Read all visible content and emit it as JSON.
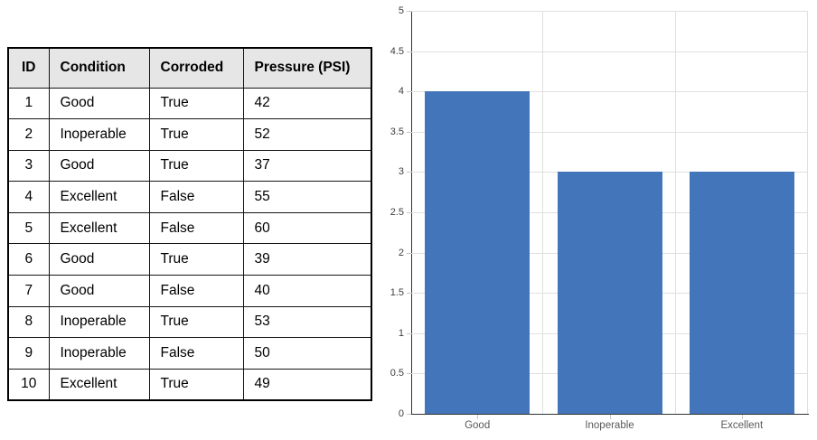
{
  "table": {
    "headers": [
      "ID",
      "Condition",
      "Corroded",
      "Pressure (PSI)"
    ],
    "rows": [
      [
        "1",
        "Good",
        "True",
        "42"
      ],
      [
        "2",
        "Inoperable",
        "True",
        "52"
      ],
      [
        "3",
        "Good",
        "True",
        "37"
      ],
      [
        "4",
        "Excellent",
        "False",
        "55"
      ],
      [
        "5",
        "Excellent",
        "False",
        "60"
      ],
      [
        "6",
        "Good",
        "True",
        "39"
      ],
      [
        "7",
        "Good",
        "False",
        "40"
      ],
      [
        "8",
        "Inoperable",
        "True",
        "53"
      ],
      [
        "9",
        "Inoperable",
        "False",
        "50"
      ],
      [
        "10",
        "Excellent",
        "True",
        "49"
      ]
    ],
    "header_bg": "#E7E6E6",
    "border_color": "#000000"
  },
  "chart_data": {
    "type": "bar",
    "title": "",
    "categories": [
      "Good",
      "Inoperable",
      "Excellent"
    ],
    "values": [
      4,
      3,
      3
    ],
    "xlabel": "",
    "ylabel": "",
    "ylim": [
      0,
      5
    ],
    "yticks": [
      0,
      0.5,
      1,
      1.5,
      2,
      2.5,
      3,
      3.5,
      4,
      4.5,
      5
    ],
    "grid": true,
    "legend_position": "none",
    "bar_color": "#4275BA",
    "gridline_color": "#E0E0E0",
    "axis_color": "#333333",
    "tick_color": "#C6C6C6",
    "ytick_label_color": "#404040",
    "xtick_label_color": "#595959"
  }
}
